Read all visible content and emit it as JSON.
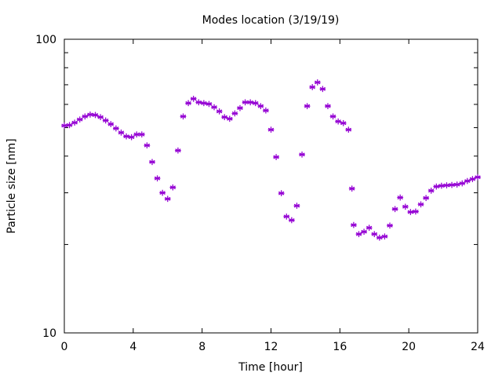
{
  "chart_data": {
    "type": "scatter",
    "title": "Modes location (3/19/19)",
    "xlabel": "Time [hour]",
    "ylabel": "Particle size [nm]",
    "xlim": [
      0,
      24
    ],
    "ylim": [
      10,
      100
    ],
    "yscale": "log",
    "grid": false,
    "legend": "none",
    "x_ticks": [
      0,
      4,
      8,
      12,
      16,
      20,
      24
    ],
    "x_tick_labels": [
      "0",
      "4",
      "8",
      "12",
      "16",
      "20",
      "24"
    ],
    "y_ticks": [
      10,
      100
    ],
    "y_tick_labels": [
      "10",
      "100"
    ],
    "y_minor_ticks": [
      20,
      30,
      40,
      50,
      60,
      70,
      80,
      90
    ],
    "marker_color": "#9400D3",
    "series": [
      {
        "points": [
          [
            0.0,
            50.8
          ],
          [
            0.3,
            51.0
          ],
          [
            0.6,
            52.0
          ],
          [
            0.9,
            53.3
          ],
          [
            1.2,
            54.6
          ],
          [
            1.5,
            55.4
          ],
          [
            1.8,
            55.2
          ],
          [
            2.1,
            54.3
          ],
          [
            2.4,
            52.9
          ],
          [
            2.7,
            51.4
          ],
          [
            3.0,
            49.7
          ],
          [
            3.3,
            48.1
          ],
          [
            3.6,
            46.7
          ],
          [
            3.9,
            46.4
          ],
          [
            4.2,
            47.4
          ],
          [
            4.5,
            47.4
          ],
          [
            4.8,
            43.5
          ],
          [
            5.1,
            38.2
          ],
          [
            5.4,
            33.6
          ],
          [
            5.7,
            30.0
          ],
          [
            6.0,
            28.6
          ],
          [
            6.3,
            31.3
          ],
          [
            6.6,
            41.8
          ],
          [
            6.9,
            54.6
          ],
          [
            7.2,
            60.6
          ],
          [
            7.5,
            62.7
          ],
          [
            7.8,
            61.0
          ],
          [
            8.1,
            60.6
          ],
          [
            8.4,
            60.2
          ],
          [
            8.7,
            58.7
          ],
          [
            9.0,
            56.8
          ],
          [
            9.3,
            54.3
          ],
          [
            9.6,
            53.6
          ],
          [
            9.9,
            55.9
          ],
          [
            10.2,
            58.3
          ],
          [
            10.5,
            61.0
          ],
          [
            10.8,
            61.0
          ],
          [
            11.1,
            60.6
          ],
          [
            11.4,
            59.2
          ],
          [
            11.7,
            57.2
          ],
          [
            12.0,
            49.2
          ],
          [
            12.3,
            39.7
          ],
          [
            12.6,
            29.9
          ],
          [
            12.9,
            24.9
          ],
          [
            13.2,
            24.2
          ],
          [
            13.5,
            27.1
          ],
          [
            13.8,
            40.5
          ],
          [
            14.1,
            59.2
          ],
          [
            14.4,
            68.7
          ],
          [
            14.7,
            71.3
          ],
          [
            15.0,
            67.7
          ],
          [
            15.3,
            59.2
          ],
          [
            15.6,
            54.6
          ],
          [
            15.9,
            52.5
          ],
          [
            16.2,
            51.8
          ],
          [
            16.5,
            49.2
          ],
          [
            16.7,
            31.0
          ],
          [
            16.8,
            23.3
          ],
          [
            17.1,
            21.7
          ],
          [
            17.4,
            22.1
          ],
          [
            17.7,
            22.8
          ],
          [
            18.0,
            21.7
          ],
          [
            18.3,
            21.1
          ],
          [
            18.6,
            21.3
          ],
          [
            18.9,
            23.2
          ],
          [
            19.2,
            26.4
          ],
          [
            19.5,
            28.9
          ],
          [
            19.8,
            26.9
          ],
          [
            20.1,
            25.8
          ],
          [
            20.4,
            25.9
          ],
          [
            20.7,
            27.4
          ],
          [
            21.0,
            28.8
          ],
          [
            21.3,
            30.5
          ],
          [
            21.6,
            31.5
          ],
          [
            21.9,
            31.7
          ],
          [
            22.2,
            31.8
          ],
          [
            22.5,
            31.9
          ],
          [
            22.8,
            32.0
          ],
          [
            23.1,
            32.3
          ],
          [
            23.4,
            32.9
          ],
          [
            23.7,
            33.4
          ],
          [
            24.0,
            33.9
          ]
        ]
      }
    ]
  }
}
